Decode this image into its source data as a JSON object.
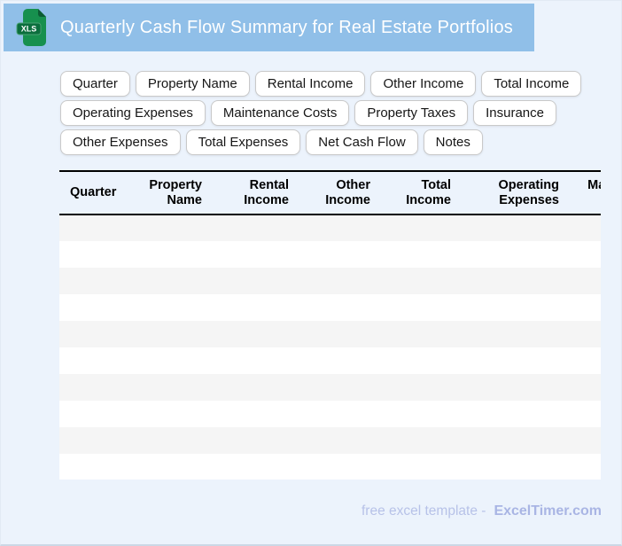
{
  "header": {
    "title": "Quarterly Cash Flow Summary for Real Estate Portfolios",
    "icon": "xls-file-icon",
    "icon_label": "XLS",
    "bar_color": "#90bfe8",
    "icon_body_color": "#17904e",
    "icon_badge_color": "#0b6e3d"
  },
  "chip_rows": [
    [
      "Quarter",
      "Property Name",
      "Rental Income",
      "Other Income",
      "Total Income"
    ],
    [
      "Operating Expenses",
      "Maintenance Costs",
      "Property Taxes",
      "Insurance"
    ],
    [
      "Other Expenses",
      "Total Expenses",
      "Net Cash Flow",
      "Notes"
    ]
  ],
  "table": {
    "columns": [
      {
        "label": "Quarter",
        "align": "left"
      },
      {
        "label": "Property Name",
        "align": "right"
      },
      {
        "label": "Rental Income",
        "align": "right"
      },
      {
        "label": "Other Income",
        "align": "right"
      },
      {
        "label": "Total Income",
        "align": "right"
      },
      {
        "label": "Operating Expenses",
        "align": "right"
      },
      {
        "label": "Maintenance Costs",
        "align": "right"
      }
    ],
    "visible_empty_rows": 10,
    "stripe_color": "#f5f5f5",
    "row_color": "#ffffff"
  },
  "footer": {
    "label": "free excel template -",
    "brand": "ExcelTimer.com"
  },
  "colors": {
    "page_background": "#ecf3fc",
    "header_text": "#ffffff",
    "table_border": "#000000",
    "footer_label": "#b7c2e8",
    "footer_brand": "#a9b5e4"
  }
}
